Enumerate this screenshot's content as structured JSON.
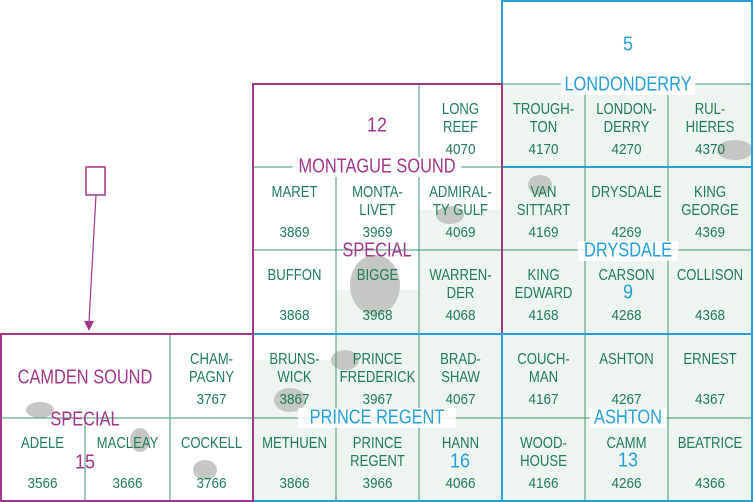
{
  "tiles": [
    {
      "name": [
        "LONG",
        "REEF"
      ],
      "number": 4070
    },
    {
      "name": [
        "TROUGH-",
        "TON"
      ],
      "number": 4170
    },
    {
      "name": [
        "LONDON-",
        "DERRY"
      ],
      "number": 4270
    },
    {
      "name": [
        "RUL-",
        "HIERES"
      ],
      "number": 4370
    },
    {
      "name": [
        "MARET"
      ],
      "number": 3869
    },
    {
      "name": [
        "MONTA-",
        "LIVET"
      ],
      "number": 3969
    },
    {
      "name": [
        "ADMIRAL-",
        "TY GULF"
      ],
      "number": 4069
    },
    {
      "name": [
        "VAN",
        "SITTART"
      ],
      "number": 4169
    },
    {
      "name": [
        "DRYSDALE"
      ],
      "number": 4269
    },
    {
      "name": [
        "KING",
        "GEORGE"
      ],
      "number": 4369
    },
    {
      "name": [
        "BUFFON"
      ],
      "number": 3868
    },
    {
      "name": [
        "BIGGE"
      ],
      "number": 3968
    },
    {
      "name": [
        "WARREN-",
        "DER"
      ],
      "number": 4068
    },
    {
      "name": [
        "KING",
        "EDWARD"
      ],
      "number": 4168
    },
    {
      "name": [
        "CARSON"
      ],
      "number": 4268
    },
    {
      "name": [
        "COLLISON"
      ],
      "number": 4368
    },
    {
      "name": [
        "CHAM-",
        "PAGNY"
      ],
      "number": 3767
    },
    {
      "name": [
        "BRUNS-",
        "WICK"
      ],
      "number": 3867
    },
    {
      "name": [
        "PRINCE",
        "FREDERICK"
      ],
      "number": 3967
    },
    {
      "name": [
        "BRAD-",
        "SHAW"
      ],
      "number": 4067
    },
    {
      "name": [
        "COUCH-",
        "MAN"
      ],
      "number": 4167
    },
    {
      "name": [
        "ASHTON"
      ],
      "number": 4267
    },
    {
      "name": [
        "ERNEST"
      ],
      "number": 4367
    },
    {
      "name": [
        "ADELE"
      ],
      "number": 3566
    },
    {
      "name": [
        "MACLEAY"
      ],
      "number": 3666
    },
    {
      "name": [
        "COCKELL"
      ],
      "number": 3766
    },
    {
      "name": [
        "METHUEN"
      ],
      "number": 3866
    },
    {
      "name": [
        "PRINCE",
        "REGENT"
      ],
      "number": 3966
    },
    {
      "name": [
        "HANN"
      ],
      "number": 4066
    },
    {
      "name": [
        "WOOD-",
        "HOUSE"
      ],
      "number": 4166
    },
    {
      "name": [
        "CAMM"
      ],
      "number": 4266
    },
    {
      "name": [
        "BEATRICE"
      ],
      "number": 4366
    }
  ],
  "regions": [
    {
      "name": "LONDONDERRY",
      "number": 5
    },
    {
      "name": "DRYSDALE",
      "number": 9
    },
    {
      "name": "ASHTON",
      "number": 13
    },
    {
      "name": "MONTAGUE SOUND",
      "number": 12,
      "special": "SPECIAL"
    },
    {
      "name": "PRINCE REGENT",
      "number": 16
    },
    {
      "name": "CAMDEN SOUND",
      "number": 15,
      "special": "SPECIAL"
    }
  ]
}
